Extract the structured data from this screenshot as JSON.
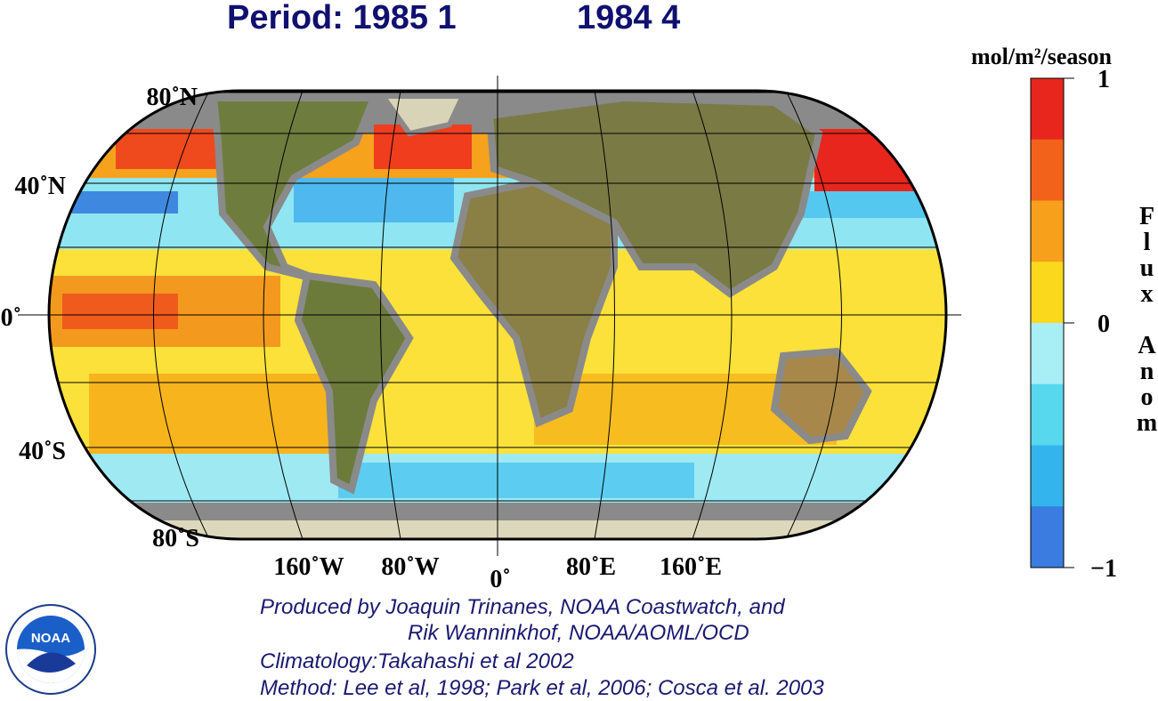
{
  "header": {
    "title_left": "Period: 1985 1",
    "title_right": "1984 4"
  },
  "map": {
    "lat_labels": [
      "80˚N",
      "40˚N",
      "0˚",
      "40˚S",
      "80˚S"
    ],
    "lon_labels": [
      "160˚W",
      "80˚W",
      "0˚",
      "80˚E",
      "160˚E"
    ]
  },
  "colorbar": {
    "unit": "mol/m²/season",
    "label": "Flux Anom",
    "ticks": [
      1,
      0,
      {
        "value": -1,
        "label": "−1"
      }
    ],
    "range": [
      -1,
      1
    ],
    "colors": [
      "#e8261e",
      "#f3621b",
      "#f7a01c",
      "#fbd81c",
      "#a8eef5",
      "#57d8ef",
      "#33b4ec",
      "#3a7ce0"
    ]
  },
  "logo": {
    "text": "NOAA"
  },
  "credits": [
    "Produced by Joaquin Trinanes, NOAA Coastwatch, and",
    "Rik Wanninkhof, NOAA/AOML/OCD",
    "Climatology:Takahashi et al 2002",
    "Method: Lee et al, 1998; Park et al, 2006; Cosca et al. 2003"
  ]
}
